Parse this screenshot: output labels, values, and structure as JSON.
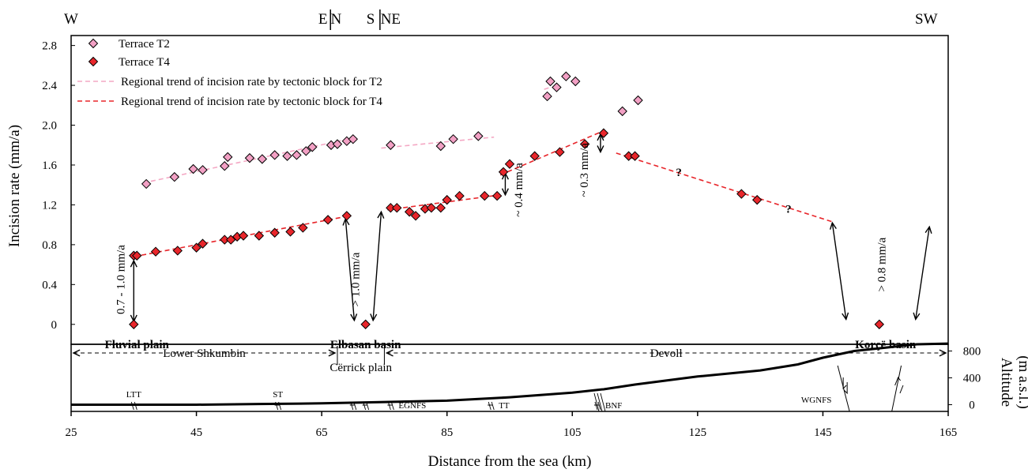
{
  "chart_data": {
    "type": "scatter",
    "title": "",
    "xlabel": "Distance from the sea (km)",
    "ylabel": "Incision rate (mm/a)",
    "y2label": [
      "Altitude",
      "(m a.s.l.)"
    ],
    "xlim": [
      25,
      165
    ],
    "ylim": [
      -0.2,
      2.9
    ],
    "x_ticks": [
      "25",
      "45",
      "65",
      "85",
      "105",
      "125",
      "145",
      "165"
    ],
    "y_ticks": [
      "0",
      "0.4",
      "0.8",
      "1.2",
      "1.6",
      "2.0",
      "2.4",
      "2.8"
    ],
    "y2_ticks": [
      "0",
      "400",
      "800"
    ],
    "legend_position": "top-left",
    "colors": {
      "t2": "#f2a0c4",
      "t4": "#e8262b",
      "trend_t2": "#f4a8c4",
      "trend_t4": "#e8262b"
    },
    "series": [
      {
        "name": "Terrace T2",
        "marker": "diamond",
        "color": "#f2a0c4",
        "points": [
          [
            37,
            1.41
          ],
          [
            41.5,
            1.48
          ],
          [
            44.5,
            1.56
          ],
          [
            46,
            1.55
          ],
          [
            49.5,
            1.59
          ],
          [
            50,
            1.68
          ],
          [
            53.5,
            1.67
          ],
          [
            55.5,
            1.66
          ],
          [
            57.5,
            1.7
          ],
          [
            59.5,
            1.69
          ],
          [
            61,
            1.7
          ],
          [
            62.5,
            1.74
          ],
          [
            63.5,
            1.78
          ],
          [
            66.5,
            1.8
          ],
          [
            67.5,
            1.81
          ],
          [
            69,
            1.84
          ],
          [
            70,
            1.86
          ],
          [
            76,
            1.8
          ],
          [
            84,
            1.79
          ],
          [
            86,
            1.86
          ],
          [
            90,
            1.89
          ],
          [
            101,
            2.29
          ],
          [
            101.5,
            2.44
          ],
          [
            102.5,
            2.38
          ],
          [
            104,
            2.49
          ],
          [
            105.5,
            2.44
          ],
          [
            113,
            2.14
          ],
          [
            115.5,
            2.25
          ]
        ]
      },
      {
        "name": "Terrace T4",
        "marker": "diamond",
        "color": "#e8262b",
        "points": [
          [
            35,
            0.69
          ],
          [
            35.5,
            0.69
          ],
          [
            38.5,
            0.73
          ],
          [
            42,
            0.74
          ],
          [
            45,
            0.77
          ],
          [
            46,
            0.81
          ],
          [
            49.5,
            0.85
          ],
          [
            50.5,
            0.85
          ],
          [
            51.5,
            0.88
          ],
          [
            52.5,
            0.89
          ],
          [
            55,
            0.89
          ],
          [
            57.5,
            0.92
          ],
          [
            60,
            0.93
          ],
          [
            62,
            0.97
          ],
          [
            66,
            1.05
          ],
          [
            69,
            1.09
          ],
          [
            76,
            1.17
          ],
          [
            77,
            1.17
          ],
          [
            79,
            1.13
          ],
          [
            80,
            1.09
          ],
          [
            81.5,
            1.16
          ],
          [
            82.5,
            1.17
          ],
          [
            84,
            1.17
          ],
          [
            85,
            1.25
          ],
          [
            87,
            1.29
          ],
          [
            91,
            1.29
          ],
          [
            93,
            1.29
          ],
          [
            94,
            1.53
          ],
          [
            95,
            1.61
          ],
          [
            99,
            1.69
          ],
          [
            103,
            1.73
          ],
          [
            107,
            1.81
          ],
          [
            110,
            1.92
          ],
          [
            114,
            1.69
          ],
          [
            115,
            1.69
          ],
          [
            132,
            1.31
          ],
          [
            134.5,
            1.25
          ],
          [
            35,
            0
          ],
          [
            72,
            0
          ],
          [
            154,
            0
          ]
        ]
      },
      {
        "name": "Regional trend of incision rate by tectonic block for T2",
        "style": "dashed",
        "color": "#f4a8c4",
        "segments": [
          [
            [
              36.5,
              1.42
            ],
            [
              70,
              1.87
            ]
          ],
          [
            [
              74.5,
              1.77
            ],
            [
              92.5,
              1.88
            ]
          ],
          [
            [
              100.5,
              2.36
            ],
            [
              101.5,
              2.38
            ]
          ]
        ]
      },
      {
        "name": "Regional trend of incision rate by tectonic block for T4",
        "style": "dashed",
        "color": "#e8262b",
        "segments": [
          [
            [
              35,
              0.68
            ],
            [
              69.5,
              1.09
            ]
          ],
          [
            [
              75.5,
              1.15
            ],
            [
              93.5,
              1.3
            ]
          ],
          [
            [
              93.5,
              1.5
            ],
            [
              109.5,
              1.93
            ]
          ],
          [
            [
              112,
              1.72
            ],
            [
              146.5,
              1.03
            ]
          ]
        ]
      }
    ],
    "annotations": [
      {
        "text": "0.7 - 1.0 mm/a",
        "x": 33.5,
        "y": 0.45,
        "rotate": -90,
        "kind": "rate"
      },
      {
        "text": "> 1.0 mm/a",
        "x": 71,
        "y": 0.45,
        "rotate": -90,
        "kind": "rate"
      },
      {
        "text": "~ 0.4 mm/a",
        "x": 97,
        "y": 1.35,
        "rotate": -90,
        "kind": "rate"
      },
      {
        "text": "~ 0.3 mm/a",
        "x": 107.5,
        "y": 1.55,
        "rotate": -90,
        "kind": "rate"
      },
      {
        "text": "> 0.8 mm/a",
        "x": 155,
        "y": 0.6,
        "rotate": -90,
        "kind": "rate"
      },
      {
        "text": "?",
        "x": 122,
        "y": 1.49,
        "kind": "question"
      },
      {
        "text": "?",
        "x": 139.5,
        "y": 1.12,
        "kind": "question"
      },
      {
        "text": "Fluvial plain",
        "x": 35.5,
        "y": -0.24,
        "kind": "place"
      },
      {
        "text": "Elbasan basin",
        "x": 72,
        "y": -0.24,
        "kind": "place"
      },
      {
        "text": "Korçë basin",
        "x": 155,
        "y": -0.24,
        "kind": "place"
      }
    ],
    "arrows": [
      {
        "x1": 35,
        "y1": 0.64,
        "x2": 35,
        "y2": 0.03,
        "heads": "both"
      },
      {
        "x1": 68.8,
        "y1": 1.06,
        "x2": 70.2,
        "y2": 0.04,
        "heads": "both"
      },
      {
        "x1": 74.5,
        "y1": 1.13,
        "x2": 73.2,
        "y2": 0.04,
        "heads": "both"
      },
      {
        "x1": 94.3,
        "y1": 1.52,
        "x2": 94.3,
        "y2": 1.3,
        "heads": "both"
      },
      {
        "x1": 109.5,
        "y1": 1.91,
        "x2": 109.5,
        "y2": 1.73,
        "heads": "both"
      },
      {
        "x1": 146.5,
        "y1": 1.02,
        "x2": 148.7,
        "y2": 0.05,
        "heads": "both"
      },
      {
        "x1": 162,
        "y1": 0.98,
        "x2": 159.8,
        "y2": 0.05,
        "heads": "both"
      }
    ],
    "directions": [
      {
        "text": "W",
        "x": 25
      },
      {
        "text": "E",
        "x": 65.2
      },
      {
        "text": "N",
        "x": 67.3
      },
      {
        "text": "S",
        "x": 72.8
      },
      {
        "text": "NE",
        "x": 76
      },
      {
        "text": "SW",
        "x": 161.5
      }
    ],
    "direction_dividers": [
      66.4,
      74.3
    ],
    "profile": {
      "points": [
        [
          25,
          0
        ],
        [
          45,
          0
        ],
        [
          55,
          10
        ],
        [
          65,
          20
        ],
        [
          75,
          40
        ],
        [
          85,
          60
        ],
        [
          95,
          110
        ],
        [
          105,
          180
        ],
        [
          110,
          230
        ],
        [
          115,
          300
        ],
        [
          125,
          420
        ],
        [
          135,
          510
        ],
        [
          141,
          600
        ],
        [
          143,
          650
        ],
        [
          145,
          700
        ],
        [
          150,
          800
        ],
        [
          155,
          850
        ],
        [
          160,
          900
        ],
        [
          165,
          910
        ]
      ],
      "ylim": [
        -100,
        900
      ],
      "zones": [
        {
          "text": "Lower Shkumbin",
          "x1": 25,
          "x2": 67.5
        },
        {
          "text": "Cërrick plain",
          "x1": 67.5,
          "x2": 75
        },
        {
          "text": "Devoll",
          "x1": 75,
          "x2": 165
        }
      ],
      "faults": [
        {
          "text": "LTT",
          "x": 35
        },
        {
          "text": "ST",
          "x": 58
        },
        {
          "text": "",
          "x": 70
        },
        {
          "text": "",
          "x": 72
        },
        {
          "text": "EGNFS",
          "x": 76
        },
        {
          "text": "TT",
          "x": 92
        },
        {
          "text": "BNF",
          "x": 109
        },
        {
          "text": "WGNFS",
          "x": 149
        }
      ]
    }
  }
}
